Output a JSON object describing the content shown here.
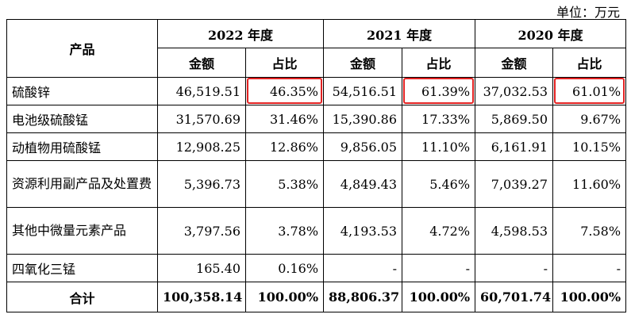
{
  "unit_label": "单位：万元",
  "header": {
    "product": "产品",
    "years": [
      "2022 年度",
      "2021 年度",
      "2020 年度"
    ],
    "amount": "金额",
    "ratio": "占比"
  },
  "rows": [
    {
      "name": "硫酸锌",
      "values": [
        "46,519.51",
        "46.35%",
        "54,516.51",
        "61.39%",
        "37,032.53",
        "61.01%"
      ]
    },
    {
      "name": "电池级硫酸锰",
      "values": [
        "31,570.69",
        "31.46%",
        "15,390.86",
        "17.33%",
        "5,869.50",
        "9.67%"
      ]
    },
    {
      "name": "动植物用硫酸锰",
      "values": [
        "12,908.25",
        "12.86%",
        "9,856.05",
        "11.10%",
        "6,161.91",
        "10.15%"
      ]
    },
    {
      "name": "资源利用副产品及处置费",
      "values": [
        "5,396.73",
        "5.38%",
        "4,849.43",
        "5.46%",
        "7,039.27",
        "11.60%"
      ]
    },
    {
      "name": "其他中微量元素产品",
      "values": [
        "3,797.56",
        "3.78%",
        "4,193.53",
        "4.72%",
        "4,598.53",
        "7.58%"
      ]
    },
    {
      "name": "四氧化三锰",
      "values": [
        "165.40",
        "0.16%",
        "-",
        "-",
        "-",
        "-"
      ]
    }
  ],
  "total": {
    "name": "合计",
    "values": [
      "100,358.14",
      "100.00%",
      "88,806.37",
      "100.00%",
      "60,701.74",
      "100.00%"
    ]
  },
  "highlight_color": "#e32222"
}
